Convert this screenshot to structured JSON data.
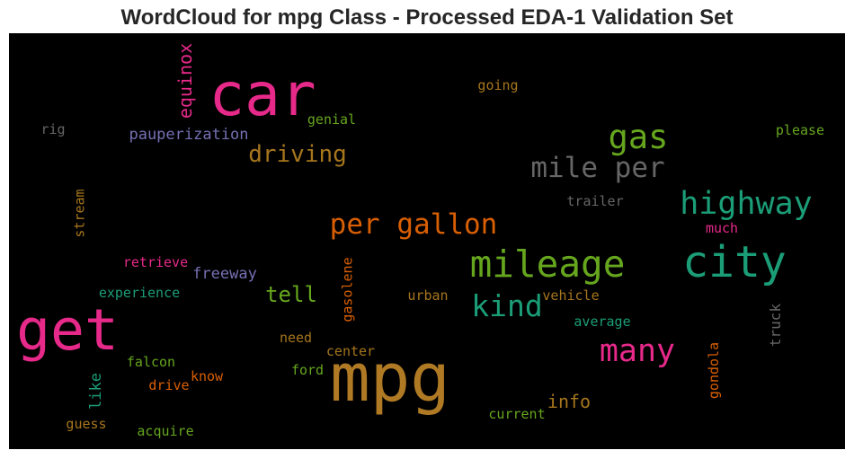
{
  "title": "WordCloud for mpg Class - Processed EDA-1 Validation Set",
  "chart_data": {
    "type": "wordcloud",
    "title": "WordCloud for mpg Class - Processed EDA-1 Validation Set",
    "background": "#000000",
    "words": [
      {
        "text": "mpg",
        "weight": 1.0,
        "color": "#b07a24",
        "orientation": "horizontal"
      },
      {
        "text": "car",
        "weight": 0.9,
        "color": "#e7298a",
        "orientation": "horizontal"
      },
      {
        "text": "get",
        "weight": 0.86,
        "color": "#e7298a",
        "orientation": "horizontal"
      },
      {
        "text": "city",
        "weight": 0.66,
        "color": "#1b9e77",
        "orientation": "horizontal"
      },
      {
        "text": "mileage",
        "weight": 0.58,
        "color": "#66a61e",
        "orientation": "horizontal"
      },
      {
        "text": "gas",
        "weight": 0.52,
        "color": "#66a61e",
        "orientation": "horizontal"
      },
      {
        "text": "many",
        "weight": 0.5,
        "color": "#e7298a",
        "orientation": "horizontal"
      },
      {
        "text": "highway",
        "weight": 0.5,
        "color": "#1b9e77",
        "orientation": "horizontal"
      },
      {
        "text": "kind",
        "weight": 0.47,
        "color": "#1b9e77",
        "orientation": "horizontal"
      },
      {
        "text": "mile per",
        "weight": 0.45,
        "color": "#666666",
        "orientation": "horizontal"
      },
      {
        "text": "per gallon",
        "weight": 0.45,
        "color": "#d95f02",
        "orientation": "horizontal"
      },
      {
        "text": "driving",
        "weight": 0.38,
        "color": "#a6761d",
        "orientation": "horizontal"
      },
      {
        "text": "tell",
        "weight": 0.36,
        "color": "#66a61e",
        "orientation": "horizontal"
      },
      {
        "text": "equinox",
        "weight": 0.3,
        "color": "#e7298a",
        "orientation": "vertical"
      },
      {
        "text": "info",
        "weight": 0.3,
        "color": "#a6761d",
        "orientation": "horizontal"
      },
      {
        "text": "pauperization",
        "weight": 0.26,
        "color": "#7570b3",
        "orientation": "horizontal"
      },
      {
        "text": "freeway",
        "weight": 0.26,
        "color": "#7570b3",
        "orientation": "horizontal"
      },
      {
        "text": "gasolene",
        "weight": 0.24,
        "color": "#d95f02",
        "orientation": "vertical"
      },
      {
        "text": "like",
        "weight": 0.26,
        "color": "#1b9e77",
        "orientation": "vertical"
      },
      {
        "text": "truck",
        "weight": 0.25,
        "color": "#666666",
        "orientation": "vertical"
      },
      {
        "text": "gondola",
        "weight": 0.24,
        "color": "#d95f02",
        "orientation": "vertical"
      },
      {
        "text": "stream",
        "weight": 0.24,
        "color": "#a6761d",
        "orientation": "vertical"
      },
      {
        "text": "going",
        "weight": 0.24,
        "color": "#a6761d",
        "orientation": "horizontal"
      },
      {
        "text": "genial",
        "weight": 0.24,
        "color": "#66a61e",
        "orientation": "horizontal"
      },
      {
        "text": "please",
        "weight": 0.24,
        "color": "#66a61e",
        "orientation": "horizontal"
      },
      {
        "text": "rig",
        "weight": 0.24,
        "color": "#666666",
        "orientation": "horizontal"
      },
      {
        "text": "trailer",
        "weight": 0.24,
        "color": "#666666",
        "orientation": "horizontal"
      },
      {
        "text": "much",
        "weight": 0.24,
        "color": "#e7298a",
        "orientation": "horizontal"
      },
      {
        "text": "retrieve",
        "weight": 0.24,
        "color": "#e7298a",
        "orientation": "horizontal"
      },
      {
        "text": "experience",
        "weight": 0.24,
        "color": "#1b9e77",
        "orientation": "horizontal"
      },
      {
        "text": "urban",
        "weight": 0.24,
        "color": "#a6761d",
        "orientation": "horizontal"
      },
      {
        "text": "vehicle",
        "weight": 0.24,
        "color": "#a6761d",
        "orientation": "horizontal"
      },
      {
        "text": "average",
        "weight": 0.24,
        "color": "#1b9e77",
        "orientation": "horizontal"
      },
      {
        "text": "need",
        "weight": 0.24,
        "color": "#a6761d",
        "orientation": "horizontal"
      },
      {
        "text": "center",
        "weight": 0.24,
        "color": "#a6761d",
        "orientation": "horizontal"
      },
      {
        "text": "falcon",
        "weight": 0.24,
        "color": "#66a61e",
        "orientation": "horizontal"
      },
      {
        "text": "ford",
        "weight": 0.24,
        "color": "#66a61e",
        "orientation": "horizontal"
      },
      {
        "text": "know",
        "weight": 0.24,
        "color": "#d95f02",
        "orientation": "horizontal"
      },
      {
        "text": "drive",
        "weight": 0.24,
        "color": "#d95f02",
        "orientation": "horizontal"
      },
      {
        "text": "current",
        "weight": 0.24,
        "color": "#66a61e",
        "orientation": "horizontal"
      },
      {
        "text": "guess",
        "weight": 0.24,
        "color": "#a6761d",
        "orientation": "horizontal"
      },
      {
        "text": "acquire",
        "weight": 0.24,
        "color": "#66a61e",
        "orientation": "horizontal"
      }
    ]
  }
}
